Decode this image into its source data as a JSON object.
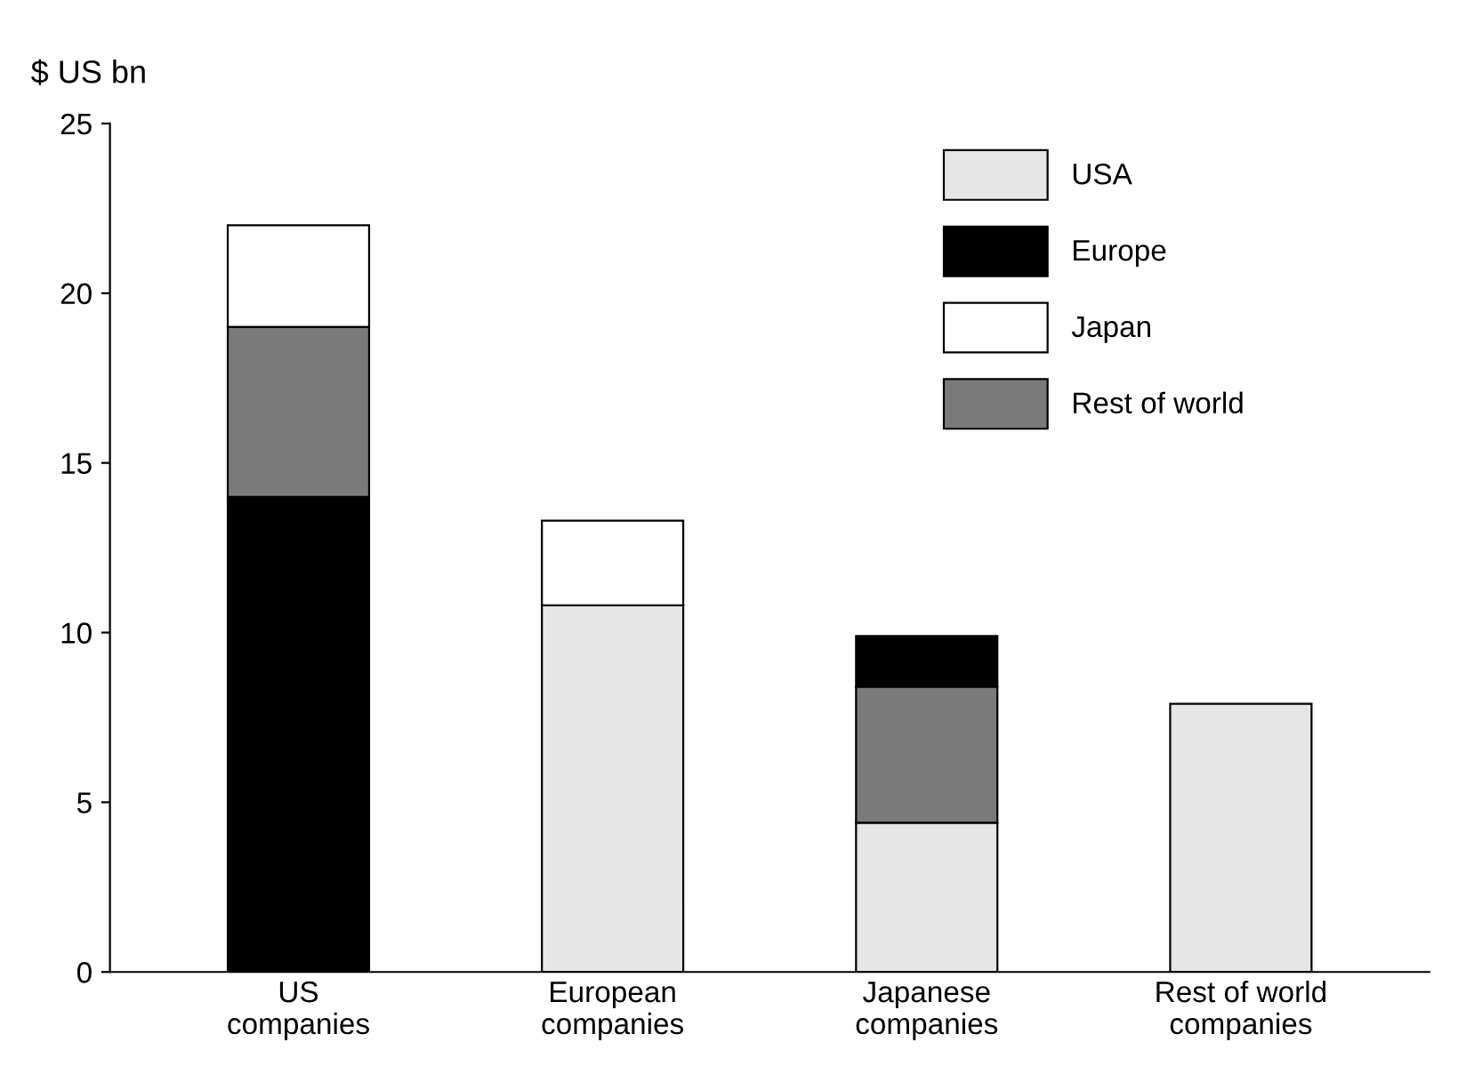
{
  "chart_data": {
    "type": "bar",
    "ylabel": "$ US bn",
    "categories": [
      "US\ncompanies",
      "European\ncompanies",
      "Japanese\ncompanies",
      "Rest of world\ncompanies"
    ],
    "series": [
      {
        "name": "USA",
        "color": "#e6e6e6",
        "values": [
          null,
          10.8,
          4.4,
          7.9
        ],
        "base": [
          null,
          0,
          0,
          0
        ]
      },
      {
        "name": "Europe",
        "color": "#000000",
        "values": [
          14,
          null,
          1.5,
          null
        ],
        "base": [
          0,
          null,
          8.4,
          null
        ]
      },
      {
        "name": "Japan",
        "color": "#ffffff",
        "values": [
          3,
          2.5,
          null,
          null
        ],
        "base": [
          19,
          10.8,
          null,
          null
        ]
      },
      {
        "name": "Rest of world",
        "color": "#7a7a7a",
        "values": [
          5,
          null,
          4,
          null
        ],
        "base": [
          14,
          null,
          4.4,
          null
        ]
      }
    ],
    "ylim": [
      0,
      25
    ],
    "yticks": [
      0,
      5,
      10,
      15,
      20,
      25
    ],
    "grid": false,
    "legend": "top right"
  }
}
